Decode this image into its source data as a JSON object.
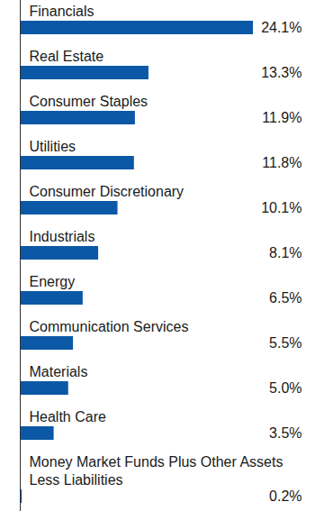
{
  "chart_data": {
    "type": "bar",
    "orientation": "horizontal",
    "categories": [
      "Financials",
      "Real Estate",
      "Consumer Staples",
      "Utilities",
      "Consumer Discretionary",
      "Industrials",
      "Energy",
      "Communication Services",
      "Materials",
      "Health Care",
      "Money Market Funds Plus Other Assets Less Liabilities"
    ],
    "values": [
      24.1,
      13.3,
      11.9,
      11.8,
      10.1,
      8.1,
      6.5,
      5.5,
      5.0,
      3.5,
      0.2
    ],
    "value_labels": [
      "24.1%",
      "13.3%",
      "11.9%",
      "11.8%",
      "10.1%",
      "8.1%",
      "6.5%",
      "5.5%",
      "5.0%",
      "3.5%",
      "0.2%"
    ],
    "color": "#0b58a6",
    "data_labels": true,
    "tick_labels": "y"
  }
}
